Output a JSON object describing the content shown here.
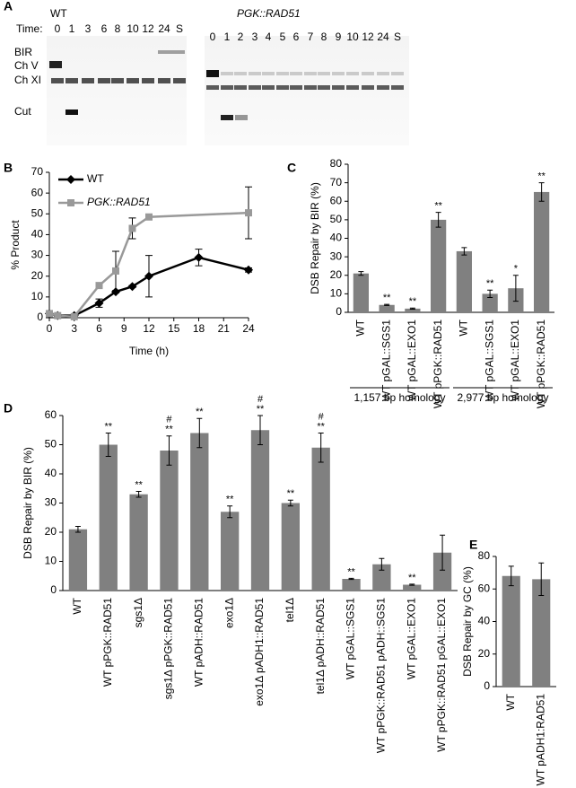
{
  "gel": {
    "panel": "A",
    "left_title": "WT",
    "time_label": "Time:",
    "left_lanes": [
      "0",
      "1",
      "3",
      "6",
      "8",
      "10",
      "12",
      "24",
      "S"
    ],
    "row_labels": [
      "BIR",
      "Ch V",
      "Ch XI",
      "Cut"
    ],
    "right_title": "PGK::RAD51",
    "right_lanes": [
      "0",
      "1",
      "2",
      "3",
      "4",
      "5",
      "6",
      "7",
      "8",
      "9",
      "10",
      "12",
      "24",
      "S"
    ]
  },
  "chart_data": [
    {
      "type": "line",
      "panel": "B",
      "xlabel": "Time (h)",
      "ylabel": "% Product",
      "xlim": [
        0,
        24
      ],
      "xticks": [
        0,
        3,
        6,
        9,
        12,
        15,
        18,
        21,
        24
      ],
      "ylim": [
        0,
        70
      ],
      "yticks": [
        0,
        10,
        20,
        30,
        40,
        50,
        60,
        70
      ],
      "legend": "upper left",
      "series": [
        {
          "name": "WT",
          "color": "#000000",
          "marker": "diamond",
          "x": [
            0,
            1,
            3,
            6,
            8,
            10,
            12,
            18,
            24
          ],
          "values": [
            2,
            1,
            1,
            7,
            12.5,
            15,
            20,
            29,
            23
          ],
          "errors": [
            1,
            0.5,
            0.5,
            2,
            0.5,
            0.5,
            10,
            4,
            1
          ]
        },
        {
          "name": "PGK::RAD51",
          "color": "#999999",
          "marker": "square",
          "x": [
            0,
            1,
            3,
            6,
            8,
            10,
            12,
            24
          ],
          "values": [
            2,
            1,
            0.5,
            15.5,
            22.5,
            43,
            48.5,
            50.5
          ],
          "errors": [
            0,
            0,
            0,
            0.5,
            9.5,
            5,
            0.5,
            12.5
          ]
        }
      ]
    },
    {
      "type": "bar",
      "panel": "C",
      "ylabel": "DSB Repair by BIR (%)",
      "color": "#808080",
      "categories": [
        "WT",
        "WT pGAL::SGS1",
        "WT pGAL::EXO1",
        "WT pPGK::RAD51",
        "WT",
        "WT pGAL::SGS1",
        "WT pGAL::EXO1",
        "WT pPGK::RAD51"
      ],
      "values": [
        21,
        4,
        2,
        50,
        33,
        10,
        13,
        65
      ],
      "errors": [
        1,
        0.3,
        0.3,
        4,
        2,
        2,
        7,
        5
      ],
      "significance": [
        null,
        "**",
        "**",
        "**",
        null,
        "**",
        "*",
        "**"
      ],
      "groups": [
        {
          "label": "1,157 bp homology",
          "count": 4
        },
        {
          "label": "2,977 bp homology",
          "count": 4
        }
      ],
      "ylim": [
        0,
        80
      ],
      "yticks": [
        0,
        10,
        20,
        30,
        40,
        50,
        60,
        70,
        80
      ]
    },
    {
      "type": "bar",
      "panel": "D",
      "ylabel": "DSB Repair by BIR (%)",
      "color": "#808080",
      "categories": [
        "WT",
        "WT pPGK::RAD51",
        "sgs1Δ",
        "sgs1Δ pPGK::RAD51",
        "WT pADH::RAD51",
        "exo1Δ",
        "exo1Δ pADH1::RAD51",
        "tel1Δ",
        "tel1Δ pADH::RAD51",
        "WT pGAL::SGS1",
        "WT pPGK::RAD51 pADH::SGS1",
        "WT pGAL::EXO1",
        "WT pPGK::RAD51 pGAL::EXO1"
      ],
      "values": [
        21,
        50,
        33,
        48,
        54,
        27,
        55,
        30,
        49,
        4,
        9,
        2,
        13
      ],
      "errors": [
        1,
        4,
        1,
        5,
        5,
        2,
        5,
        1,
        5,
        0.2,
        2,
        0.2,
        6
      ],
      "significance": [
        null,
        "**",
        "**",
        "**",
        "**",
        "**",
        "**",
        "**",
        "**",
        "**",
        null,
        "**",
        null
      ],
      "significance2": [
        null,
        null,
        null,
        "#",
        null,
        null,
        "#",
        null,
        "#",
        null,
        null,
        null,
        null
      ],
      "ylim": [
        0,
        60
      ],
      "yticks": [
        0,
        10,
        20,
        30,
        40,
        50,
        60
      ]
    },
    {
      "type": "bar",
      "panel": "E",
      "ylabel": "DSB Repair by GC (%)",
      "color": "#808080",
      "categories": [
        "WT",
        "WT pADH1:RAD51"
      ],
      "values": [
        68,
        66
      ],
      "errors": [
        6,
        10
      ],
      "ylim": [
        0,
        80
      ],
      "yticks": [
        0,
        20,
        40,
        60,
        80
      ]
    }
  ]
}
